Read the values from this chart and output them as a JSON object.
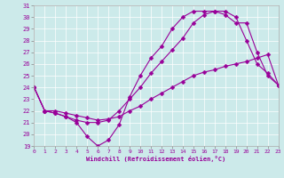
{
  "xlabel": "Windchill (Refroidissement éolien,°C)",
  "bg_color": "#cceaea",
  "line_color": "#990099",
  "grid_color": "#ffffff",
  "xmin": 0,
  "xmax": 23,
  "ymin": 19,
  "ymax": 31,
  "line1_x": [
    0,
    1,
    2,
    3,
    4,
    5,
    6,
    7,
    8,
    9,
    10,
    11,
    12,
    13,
    14,
    15,
    16,
    17,
    18,
    19,
    20,
    21,
    22,
    23
  ],
  "line1_y": [
    24,
    22,
    21.8,
    21.5,
    21,
    19.8,
    19,
    19.5,
    20.8,
    23.2,
    25,
    26.5,
    27.5,
    29,
    30,
    30.5,
    30.5,
    30.5,
    30.2,
    29.5,
    29.5,
    27,
    25,
    24.2
  ],
  "line2_x": [
    0,
    1,
    2,
    3,
    4,
    5,
    6,
    7,
    8,
    9,
    10,
    11,
    12,
    13,
    14,
    15,
    16,
    17,
    18,
    19,
    20,
    21,
    22,
    23
  ],
  "line2_y": [
    24,
    22,
    21.8,
    21.5,
    21.2,
    21,
    21,
    21.2,
    22,
    23,
    24,
    25.2,
    26.2,
    27.2,
    28.2,
    29.5,
    30.2,
    30.5,
    30.5,
    30,
    28,
    26,
    25.2,
    24.2
  ],
  "line3_x": [
    0,
    1,
    2,
    3,
    4,
    5,
    6,
    7,
    8,
    9,
    10,
    11,
    12,
    13,
    14,
    15,
    16,
    17,
    18,
    19,
    20,
    21,
    22,
    23
  ],
  "line3_y": [
    24,
    22,
    22,
    21.8,
    21.6,
    21.4,
    21.2,
    21.3,
    21.5,
    22,
    22.4,
    23,
    23.5,
    24,
    24.5,
    25,
    25.3,
    25.5,
    25.8,
    26,
    26.2,
    26.5,
    26.8,
    24.2
  ],
  "xticks": [
    0,
    1,
    2,
    3,
    4,
    5,
    6,
    7,
    8,
    9,
    10,
    11,
    12,
    13,
    14,
    15,
    16,
    17,
    18,
    19,
    20,
    21,
    22,
    23
  ],
  "yticks": [
    19,
    20,
    21,
    22,
    23,
    24,
    25,
    26,
    27,
    28,
    29,
    30,
    31
  ]
}
